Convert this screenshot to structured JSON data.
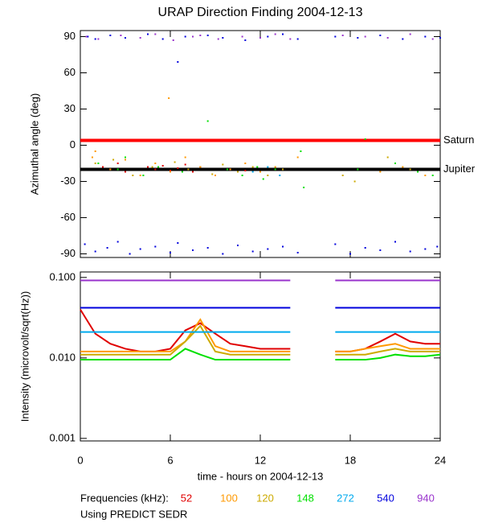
{
  "chart_data": [
    {
      "type": "scatter",
      "title": "URAP Direction Finding  2004-12-13",
      "y_label": "Azimuthal angle (deg)",
      "xlim": [
        0,
        24
      ],
      "xticks": [
        0,
        6,
        12,
        18,
        24
      ],
      "ylim": [
        -93,
        95
      ],
      "yticks": [
        90,
        60,
        30,
        0,
        -30,
        -60,
        -90
      ],
      "reference_lines": [
        {
          "label": "Saturn",
          "value": 4,
          "color": "#ff0000"
        },
        {
          "label": "Jupiter",
          "value": -20,
          "color": "#000000"
        }
      ],
      "series": [
        {
          "color": "#e00000",
          "x": [
            1.5,
            2,
            2.5,
            3,
            4.5,
            5,
            5.5,
            6,
            6.5,
            7,
            7.5,
            8,
            10,
            11
          ],
          "values": [
            -18,
            -20,
            -15,
            -22,
            -18,
            -20,
            -17,
            -21,
            -19,
            -16,
            -22,
            -18,
            -20,
            -21
          ]
        },
        {
          "color": "#ff9900",
          "x": [
            0.8,
            1,
            2,
            3,
            4,
            5,
            5.9,
            6,
            7,
            8,
            9,
            10,
            11,
            12,
            13,
            14.5,
            20,
            21.5,
            23
          ],
          "values": [
            -10,
            -5,
            -20,
            -12,
            -25,
            -15,
            39,
            -22,
            -10,
            -18,
            -25,
            -20,
            -15,
            -22,
            -18,
            -10,
            -22,
            -18,
            -25
          ]
        },
        {
          "color": "#ccaa00",
          "x": [
            1,
            2.2,
            3.5,
            4.8,
            6.3,
            7.2,
            8.8,
            9.5,
            10.5,
            11.5,
            12.5,
            13.5,
            17.5,
            18.3,
            20.5,
            22
          ],
          "values": [
            -15,
            -12,
            -25,
            -18,
            -14,
            -20,
            -24,
            -16,
            -22,
            -18,
            -25,
            -20,
            -25,
            -30,
            -10,
            -20
          ]
        },
        {
          "color": "#00e000",
          "x": [
            1.2,
            2.5,
            3,
            4.2,
            5.2,
            6.8,
            8.5,
            9.8,
            10.8,
            11.8,
            12.2,
            13,
            14.7,
            14.9,
            18.5,
            19,
            21,
            22.5,
            23.5
          ],
          "values": [
            -15,
            -20,
            -10,
            -25,
            -18,
            -22,
            20,
            -20,
            -25,
            -18,
            -28,
            -20,
            -5,
            -35,
            -20,
            5,
            -15,
            -22,
            -25
          ]
        },
        {
          "color": "#00aaee",
          "x": [
            11.5,
            12.5,
            13.3
          ],
          "values": [
            -22,
            -18,
            -25
          ]
        },
        {
          "color": "#0000dd",
          "x": [
            0.5,
            1,
            2,
            3,
            4.5,
            5.5,
            7,
            8.5,
            9.5,
            11,
            12.5,
            13.5,
            14.5,
            17,
            18.5,
            20,
            21.5,
            23,
            24,
            0.3,
            1,
            1.8,
            2.5,
            3.3,
            4,
            5,
            6,
            6.5,
            7.5,
            8.5,
            9.5,
            10.5,
            11.5,
            12.5,
            13.5,
            14.5,
            17,
            18,
            19,
            20,
            21,
            22,
            23,
            23.8,
            6.5
          ],
          "values": [
            90,
            88,
            91,
            89,
            92,
            88,
            90,
            91,
            89,
            87,
            90,
            92,
            88,
            90,
            89,
            91,
            88,
            90,
            89,
            -82,
            -88,
            -85,
            -80,
            -90,
            -86,
            -84,
            -89,
            -81,
            -87,
            -85,
            -90,
            -83,
            -88,
            -86,
            -84,
            -89,
            -82,
            -90,
            -85,
            -87,
            -80,
            -88,
            -86,
            -84,
            69
          ]
        },
        {
          "color": "#9933cc",
          "x": [
            0.4,
            1.2,
            2.7,
            4,
            5,
            6.2,
            7.5,
            8,
            9.2,
            10.8,
            12,
            13,
            14,
            17.5,
            19,
            20.5,
            22,
            23.5
          ],
          "values": [
            90,
            88,
            91,
            89,
            92,
            87,
            90,
            91,
            88,
            90,
            89,
            92,
            88,
            91,
            90,
            89,
            92,
            88
          ]
        }
      ]
    },
    {
      "type": "line",
      "y_label": "Intensity (microvolt/sqrt(Hz))",
      "x_label": "time - hours on 2004-12-13",
      "legend_title": "Frequencies (kHz):",
      "note": "Using PREDICT SEDR",
      "log_scale": true,
      "xlim": [
        0,
        24
      ],
      "xticks": [
        0,
        6,
        12,
        18,
        24
      ],
      "ylim": [
        0.00093,
        0.117
      ],
      "yticks": [
        {
          "value": 0.1,
          "label": "0.100"
        },
        {
          "value": 0.01,
          "label": "0.010"
        },
        {
          "value": 0.001,
          "label": "0.001"
        }
      ],
      "x": [
        0,
        1,
        2,
        3,
        4,
        5,
        6,
        7,
        8,
        9,
        10,
        11,
        12,
        13,
        14,
        15,
        16,
        17,
        18,
        19,
        20,
        21,
        22,
        23,
        24
      ],
      "series": [
        {
          "name": "52",
          "color": "#e00000",
          "values": [
            0.04,
            0.02,
            0.015,
            0.013,
            0.012,
            0.012,
            0.013,
            0.022,
            0.027,
            0.02,
            0.015,
            0.014,
            0.013,
            0.013,
            0.013,
            null,
            null,
            0.012,
            0.012,
            0.013,
            0.016,
            0.02,
            0.016,
            0.015,
            0.015
          ]
        },
        {
          "name": "100",
          "color": "#ff9900",
          "values": [
            0.012,
            0.012,
            0.012,
            0.012,
            0.012,
            0.012,
            0.012,
            0.016,
            0.03,
            0.014,
            0.012,
            0.012,
            0.012,
            0.012,
            0.012,
            null,
            null,
            0.012,
            0.012,
            0.013,
            0.014,
            0.015,
            0.013,
            0.013,
            0.013
          ]
        },
        {
          "name": "120",
          "color": "#ccaa00",
          "values": [
            0.011,
            0.011,
            0.011,
            0.011,
            0.011,
            0.011,
            0.011,
            0.016,
            0.025,
            0.012,
            0.011,
            0.011,
            0.011,
            0.011,
            0.011,
            null,
            null,
            0.011,
            0.011,
            0.011,
            0.012,
            0.013,
            0.012,
            0.012,
            0.012
          ]
        },
        {
          "name": "148",
          "color": "#00e000",
          "values": [
            0.0095,
            0.0095,
            0.0095,
            0.0095,
            0.0095,
            0.0095,
            0.0095,
            0.013,
            0.011,
            0.0095,
            0.0095,
            0.0095,
            0.0095,
            0.0095,
            0.0095,
            null,
            null,
            0.0095,
            0.0095,
            0.0095,
            0.01,
            0.011,
            0.0105,
            0.0105,
            0.011
          ]
        },
        {
          "name": "272",
          "color": "#00aaee",
          "values": [
            0.021,
            0.021,
            0.021,
            0.021,
            0.021,
            0.021,
            0.021,
            0.021,
            0.021,
            0.021,
            0.021,
            0.021,
            0.021,
            0.021,
            0.021,
            null,
            null,
            0.021,
            0.021,
            0.021,
            0.021,
            0.021,
            0.021,
            0.021,
            0.021
          ]
        },
        {
          "name": "540",
          "color": "#0000dd",
          "values": [
            0.042,
            0.042,
            0.042,
            0.042,
            0.042,
            0.042,
            0.042,
            0.042,
            0.042,
            0.042,
            0.042,
            0.042,
            0.042,
            0.042,
            0.042,
            null,
            null,
            0.042,
            0.042,
            0.042,
            0.042,
            0.042,
            0.042,
            0.042,
            0.042
          ]
        },
        {
          "name": "940",
          "color": "#9933cc",
          "values": [
            0.092,
            0.092,
            0.092,
            0.092,
            0.092,
            0.092,
            0.092,
            0.092,
            0.092,
            0.092,
            0.092,
            0.092,
            0.092,
            0.092,
            0.092,
            null,
            null,
            0.092,
            0.092,
            0.092,
            0.092,
            0.092,
            0.092,
            0.092,
            0.092
          ]
        }
      ]
    }
  ]
}
